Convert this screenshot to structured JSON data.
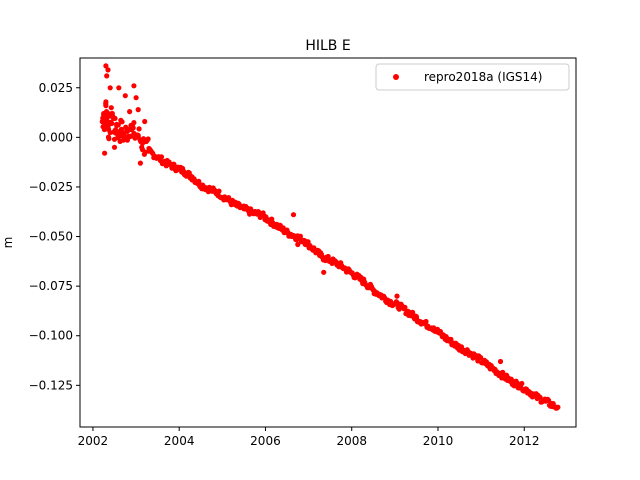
{
  "chart_data": {
    "type": "scatter",
    "title": "HILB E",
    "xlabel": "",
    "ylabel": "m",
    "xlim": [
      2001.7,
      2013.2
    ],
    "ylim": [
      -0.146,
      0.04
    ],
    "xticks": [
      2002,
      2004,
      2006,
      2008,
      2010,
      2012
    ],
    "xtick_labels": [
      "2002",
      "2004",
      "2006",
      "2008",
      "2010",
      "2012"
    ],
    "yticks": [
      0.025,
      0.0,
      -0.025,
      -0.05,
      -0.075,
      -0.1,
      -0.125
    ],
    "ytick_labels": [
      "0.025",
      "0.000",
      "−0.025",
      "−0.050",
      "−0.075",
      "−0.100",
      "−0.125"
    ],
    "grid": false,
    "legend_position": "top-right",
    "series": [
      {
        "name": "repro2018a (IGS14)",
        "color": "#ff0000",
        "marker": "point",
        "x": [
          2002.22,
          2002.25,
          2002.28,
          2002.3,
          2002.33,
          2002.36,
          2002.4,
          2002.45,
          2002.5,
          2002.55,
          2002.6,
          2002.66,
          2002.72,
          2002.8,
          2002.88,
          2002.95,
          2003.05,
          2003.15,
          2003.3,
          2003.5,
          2003.7,
          2003.9,
          2004.1,
          2004.3,
          2004.5,
          2004.7,
          2004.9,
          2005.1,
          2005.3,
          2005.5,
          2005.7,
          2005.9,
          2006.1,
          2006.3,
          2006.5,
          2006.7,
          2006.9,
          2007.1,
          2007.3,
          2007.5,
          2007.7,
          2007.9,
          2008.1,
          2008.3,
          2008.5,
          2008.7,
          2008.9,
          2009.1,
          2009.3,
          2009.5,
          2009.7,
          2009.9,
          2010.1,
          2010.3,
          2010.5,
          2010.7,
          2010.9,
          2011.1,
          2011.3,
          2011.5,
          2011.7,
          2011.9,
          2012.1,
          2012.3,
          2012.5,
          2012.65,
          2012.78,
          2002.3,
          2002.35,
          2002.4,
          2002.6,
          2002.75,
          2002.95,
          2003.0,
          2002.5,
          2002.85,
          2003.1,
          2003.2,
          2002.27,
          2002.32,
          2003.05,
          2006.65,
          2006.75,
          2007.35,
          2009.05,
          2011.45
        ],
        "y": [
          0.008,
          0.012,
          0.006,
          0.016,
          0.01,
          0.004,
          0.007,
          0.012,
          0.003,
          0.006,
          0.002,
          0.004,
          0.001,
          0.003,
          0.006,
          0.002,
          0.001,
          -0.003,
          -0.007,
          -0.01,
          -0.013,
          -0.015,
          -0.017,
          -0.02,
          -0.024,
          -0.026,
          -0.028,
          -0.031,
          -0.034,
          -0.036,
          -0.038,
          -0.039,
          -0.042,
          -0.045,
          -0.048,
          -0.05,
          -0.052,
          -0.056,
          -0.06,
          -0.062,
          -0.064,
          -0.067,
          -0.07,
          -0.073,
          -0.077,
          -0.08,
          -0.083,
          -0.085,
          -0.088,
          -0.091,
          -0.094,
          -0.096,
          -0.1,
          -0.103,
          -0.106,
          -0.108,
          -0.111,
          -0.114,
          -0.117,
          -0.12,
          -0.123,
          -0.125,
          -0.128,
          -0.131,
          -0.133,
          -0.135,
          -0.136,
          0.036,
          0.034,
          0.025,
          0.025,
          0.021,
          0.026,
          0.02,
          -0.005,
          0.013,
          -0.013,
          0.008,
          -0.008,
          0.031,
          0.014,
          -0.039,
          -0.054,
          -0.068,
          -0.08,
          -0.113
        ]
      }
    ]
  }
}
